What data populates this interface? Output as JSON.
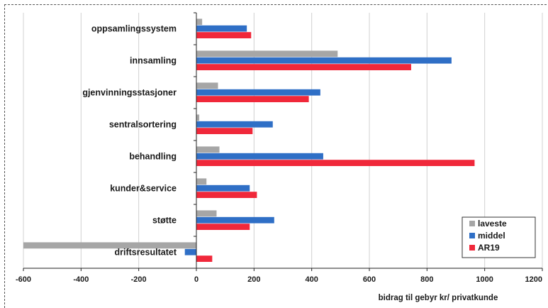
{
  "chart_data": {
    "type": "bar",
    "orientation": "horizontal",
    "categories": [
      "oppsamlingssystem",
      "innsamling",
      "gjenvinningsstasjoner",
      "sentralsortering",
      "behandling",
      "kunder&service",
      "støtte",
      "driftsresultatet"
    ],
    "series": [
      {
        "name": "laveste",
        "color": "#a6a6a6",
        "values": [
          20,
          490,
          75,
          10,
          80,
          35,
          70,
          -600
        ]
      },
      {
        "name": "middel",
        "color": "#2f6fc6",
        "values": [
          175,
          885,
          430,
          265,
          440,
          185,
          270,
          -40
        ]
      },
      {
        "name": "AR19",
        "color": "#f0283a",
        "values": [
          190,
          745,
          390,
          195,
          965,
          210,
          185,
          55
        ]
      }
    ],
    "xlim": [
      -600,
      1200
    ],
    "xticks": [
      "-600",
      "-400",
      "-200",
      "0",
      "200",
      "400",
      "600",
      "800",
      "1000",
      "1200"
    ],
    "xlabel": "bidrag til gebyr  kr/ privatkunde",
    "grid": "vertical",
    "legend_position": "bottom-right"
  }
}
